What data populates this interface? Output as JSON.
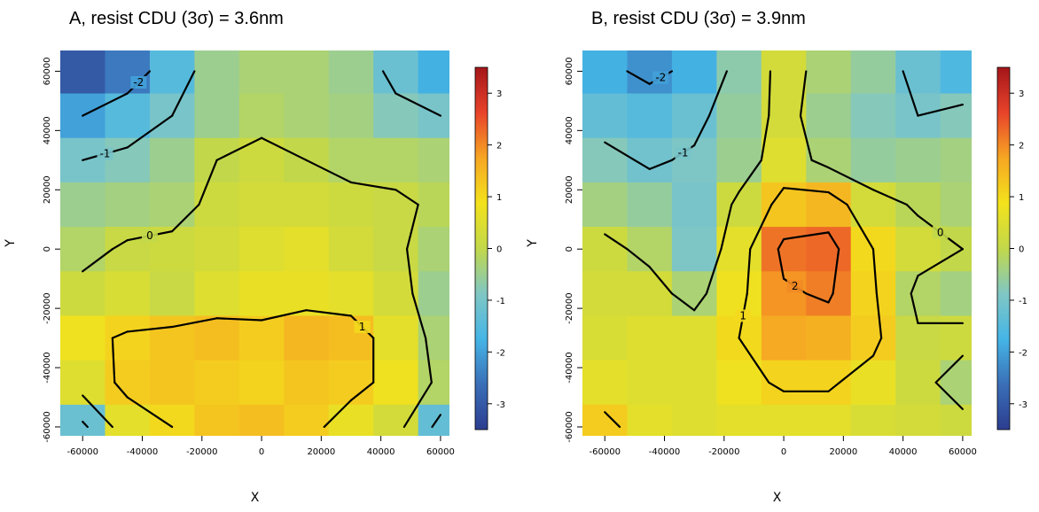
{
  "chart_data": [
    {
      "type": "heatmap",
      "title": "A, resist CDU (3σ) = 3.6nm",
      "x_label": "X",
      "y_label": "Y",
      "x": [
        -60000,
        -45000,
        -30000,
        -15000,
        0,
        15000,
        30000,
        45000,
        60000
      ],
      "y": [
        60000,
        45000,
        30000,
        15000,
        0,
        -15000,
        -30000,
        -45000,
        -60000
      ],
      "values": [
        [
          -3,
          -2.5,
          -1.5,
          -0.5,
          -0.3,
          -0.3,
          -0.5,
          -1.2,
          -1.8
        ],
        [
          -2,
          -1.5,
          -1,
          -0.5,
          -0.2,
          -0.3,
          -0.4,
          -0.8,
          -1
        ],
        [
          -1,
          -0.8,
          -0.5,
          0,
          0.2,
          0,
          -0.2,
          -0.2,
          -0.3
        ],
        [
          -0.5,
          -0.4,
          -0.3,
          0.2,
          0.3,
          0.3,
          0.2,
          0.1,
          -0.1
        ],
        [
          -0.2,
          0.1,
          0.2,
          0.3,
          0.5,
          0.6,
          0.3,
          0.1,
          -0.3
        ],
        [
          0.2,
          0.4,
          0.1,
          0.5,
          0.7,
          0.7,
          0.6,
          0.3,
          -0.5
        ],
        [
          0.8,
          1.1,
          1.3,
          1.4,
          1.2,
          1.5,
          1.4,
          0.6,
          -0.3
        ],
        [
          0.5,
          1.2,
          1.3,
          1.2,
          1.1,
          1.3,
          1.2,
          0.8,
          -0.2
        ],
        [
          -1.2,
          0.6,
          1,
          1.3,
          1.4,
          1.2,
          0.7,
          0.3,
          -1.3
        ]
      ],
      "contour_levels": [
        -3,
        -2,
        -1,
        0,
        1
      ],
      "xlim": [
        -67500,
        63000
      ],
      "ylim": [
        -63000,
        67000
      ],
      "xticks": [
        -60000,
        -40000,
        -20000,
        0,
        20000,
        40000,
        60000
      ],
      "yticks": [
        -60000,
        -40000,
        -20000,
        0,
        20000,
        40000,
        60000
      ],
      "clim": [
        -3.5,
        3.5
      ],
      "cticks": [
        -3,
        -2,
        -1,
        0,
        1,
        2,
        3
      ],
      "colors": [
        "#2c3d90",
        "#3a6fb7",
        "#45b5e6",
        "#80c7c4",
        "#c2d84a",
        "#f3e21c",
        "#f6a623",
        "#e8432a",
        "#a4161a"
      ]
    },
    {
      "type": "heatmap",
      "title": "B, resist CDU (3σ) = 3.9nm",
      "x_label": "X",
      "y_label": "Y",
      "x": [
        -60000,
        -45000,
        -30000,
        -15000,
        0,
        15000,
        30000,
        45000,
        60000
      ],
      "y": [
        60000,
        45000,
        30000,
        15000,
        0,
        -15000,
        -30000,
        -45000,
        -60000
      ],
      "values": [
        [
          -1.8,
          -2.2,
          -1.8,
          -0.7,
          0.3,
          -0.3,
          -0.6,
          -1.2,
          -1.6
        ],
        [
          -1.3,
          -1.5,
          -1.2,
          -0.6,
          0.3,
          -0.5,
          -0.8,
          -1,
          -0.8
        ],
        [
          -0.8,
          -1.1,
          -0.9,
          -0.5,
          0.5,
          -0.3,
          -0.6,
          -0.5,
          -0.4
        ],
        [
          -0.4,
          -0.6,
          -1,
          0.2,
          1.3,
          1.5,
          0.3,
          -0.1,
          -0.3
        ],
        [
          0.2,
          -0.2,
          -0.9,
          0.6,
          2.2,
          2.3,
          1,
          0.3,
          0
        ],
        [
          0.3,
          0.3,
          -0.3,
          0.8,
          1.9,
          2.1,
          1.1,
          -0.2,
          -0.4
        ],
        [
          0.4,
          0.5,
          0.5,
          1,
          1.7,
          1.6,
          1.2,
          0.1,
          0.2
        ],
        [
          0.6,
          0.5,
          0.5,
          0.8,
          1.1,
          1.1,
          0.7,
          0.2,
          -0.3
        ],
        [
          1.2,
          0.6,
          0.5,
          0.6,
          0.6,
          0.6,
          0.4,
          0.3,
          0.2
        ]
      ],
      "contour_levels": [
        -2,
        -1,
        0,
        1,
        2
      ],
      "xlim": [
        -67500,
        63000
      ],
      "ylim": [
        -63000,
        67000
      ],
      "xticks": [
        -60000,
        -40000,
        -20000,
        0,
        20000,
        40000,
        60000
      ],
      "yticks": [
        -60000,
        -40000,
        -20000,
        0,
        20000,
        40000,
        60000
      ],
      "clim": [
        -3.5,
        3.5
      ],
      "cticks": [
        -3,
        -2,
        -1,
        0,
        1,
        2,
        3
      ],
      "colors": [
        "#2c3d90",
        "#3a6fb7",
        "#45b5e6",
        "#80c7c4",
        "#c2d84a",
        "#f3e21c",
        "#f6a623",
        "#e8432a",
        "#a4161a"
      ]
    }
  ]
}
